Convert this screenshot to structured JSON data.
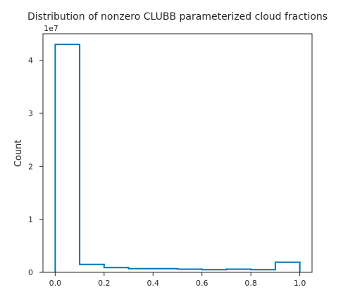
{
  "chart_data": {
    "type": "histogram",
    "title": "Distribution of nonzero CLUBB parameterized cloud fractions",
    "xlabel": "",
    "ylabel": "Count",
    "y_offset_label": "1e7",
    "xlim": [
      -0.05,
      1.05
    ],
    "ylim": [
      0,
      4.5
    ],
    "y_scale_multiplier": 10000000,
    "x_ticks": [
      "0.0",
      "0.2",
      "0.4",
      "0.6",
      "0.8",
      "1.0"
    ],
    "y_ticks": [
      "0",
      "1",
      "2",
      "3",
      "4"
    ],
    "bin_edges": [
      0.0,
      0.1,
      0.2,
      0.3,
      0.4,
      0.5,
      0.6,
      0.7,
      0.8,
      0.9,
      1.0
    ],
    "values": [
      4.3,
      0.15,
      0.09,
      0.07,
      0.07,
      0.06,
      0.05,
      0.06,
      0.05,
      0.19
    ],
    "style": "step",
    "grid": false,
    "line_color": "#0173b2"
  }
}
